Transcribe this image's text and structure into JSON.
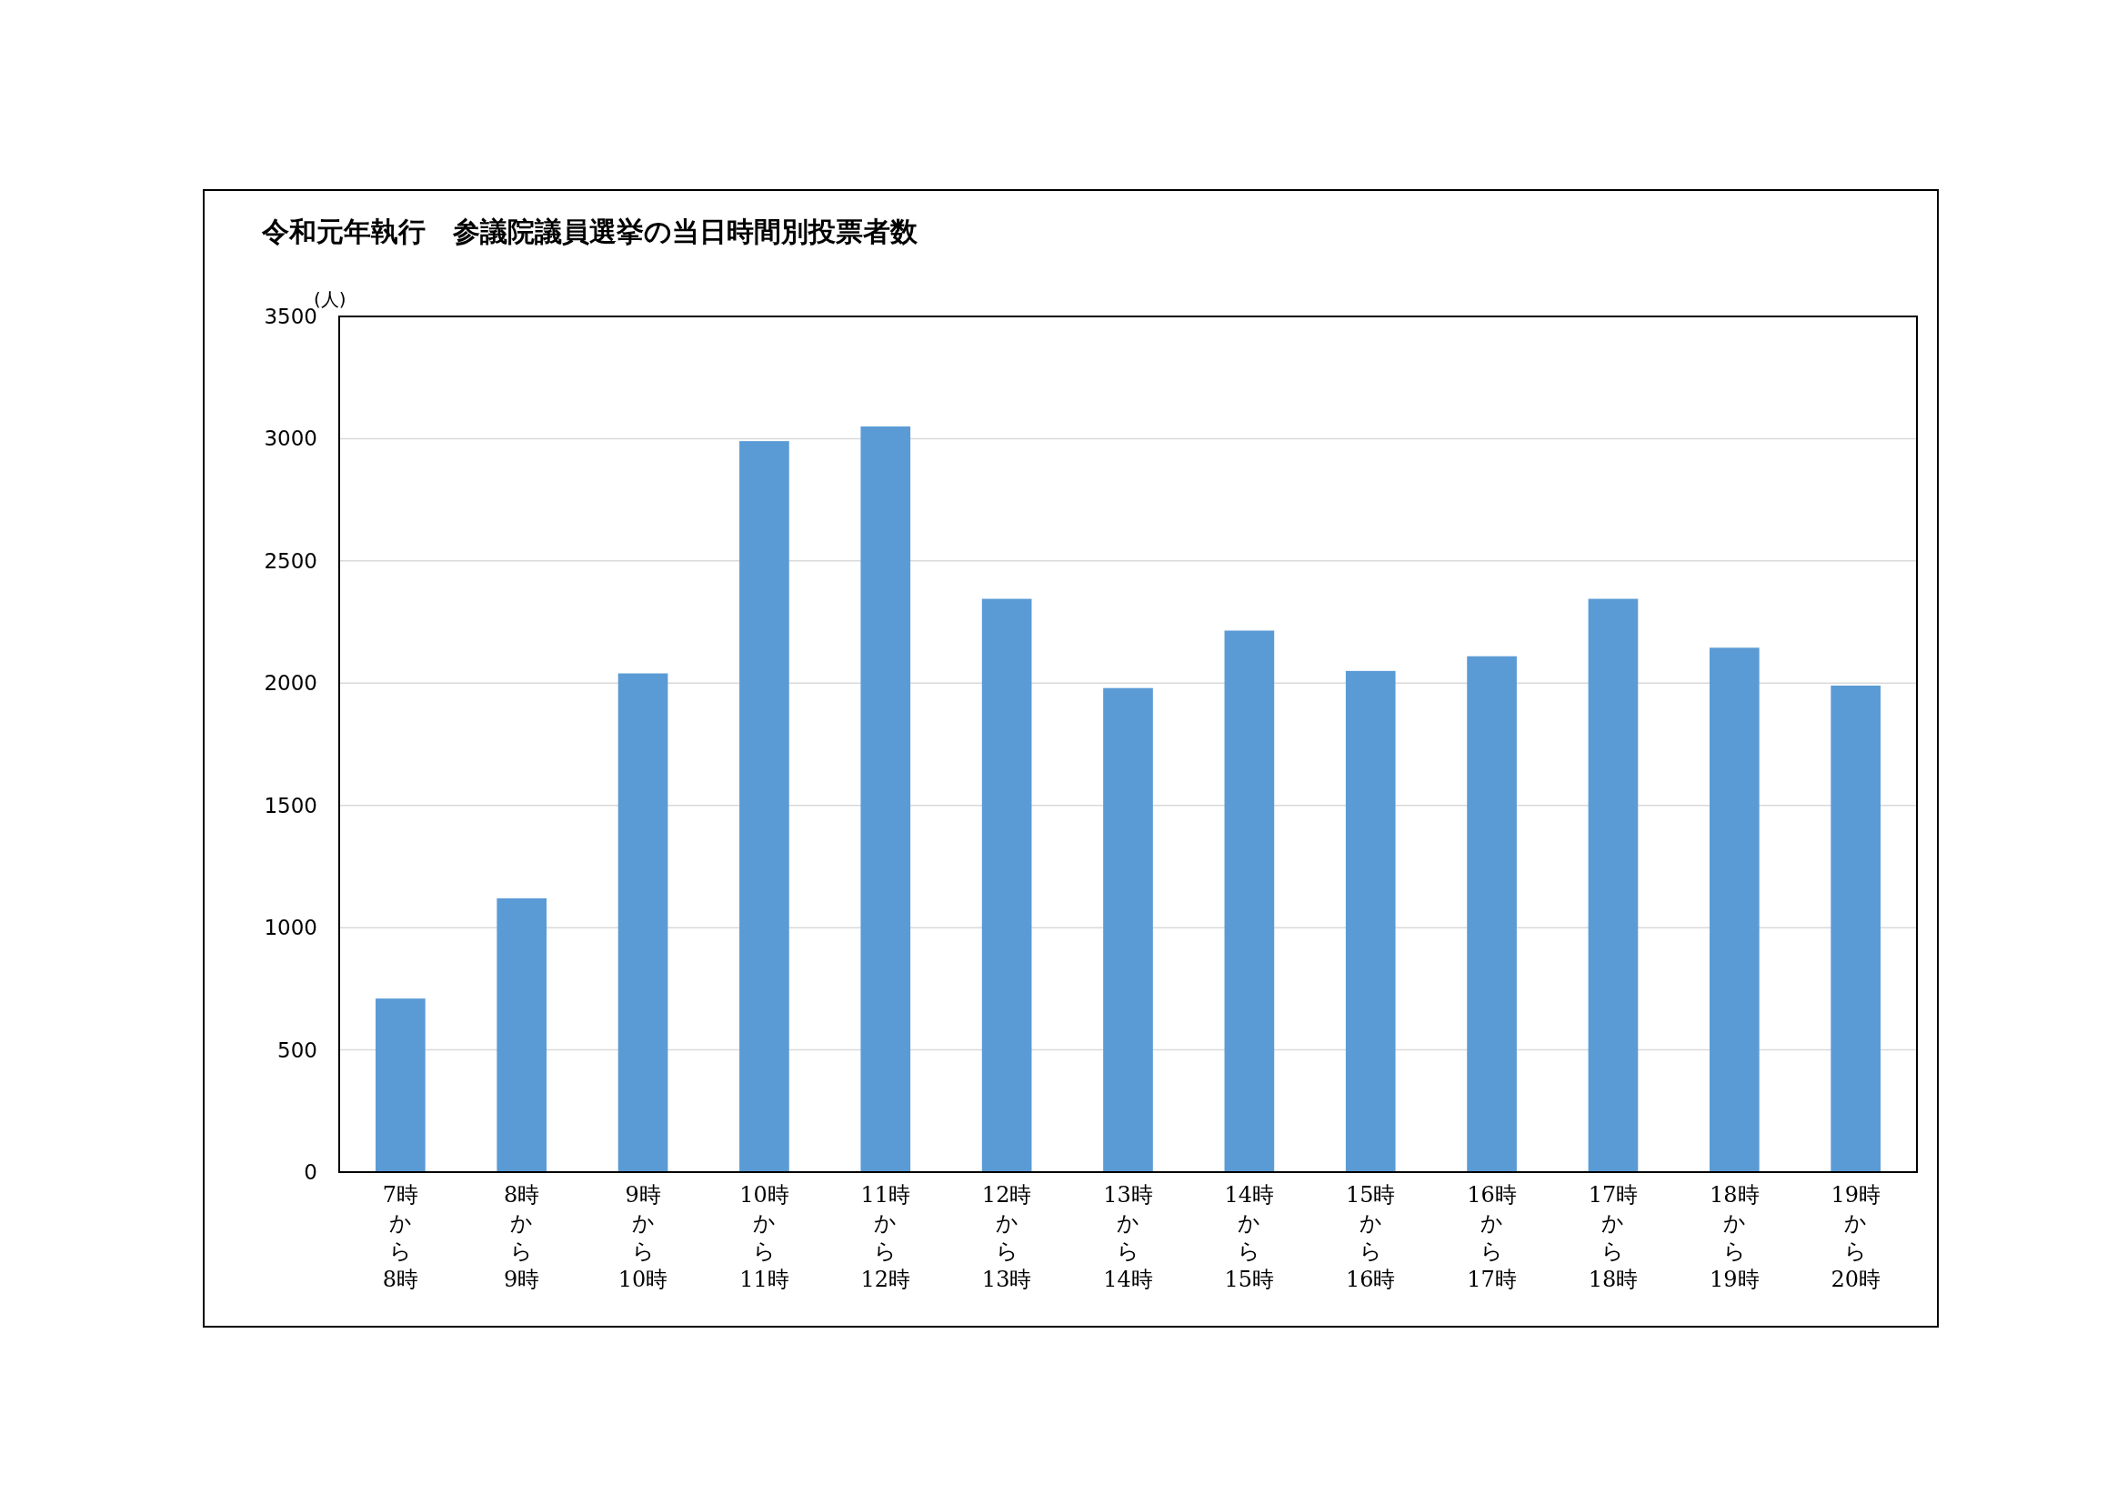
{
  "chart_data": {
    "type": "bar",
    "title": "令和元年執行　参議院議員選挙の当日時間別投票者数",
    "ylabel": "(人)",
    "categories": [
      "7時から8時",
      "8時から9時",
      "9時から10時",
      "10時から11時",
      "11時から12時",
      "12時から13時",
      "13時から14時",
      "14時から15時",
      "15時から16時",
      "16時から17時",
      "17時から18時",
      "18時から19時",
      "19時から20時"
    ],
    "values": [
      710,
      1120,
      2040,
      2990,
      3050,
      2345,
      1980,
      2215,
      2050,
      2110,
      2345,
      2145,
      1990
    ],
    "color": "#5b9bd5",
    "ylim": [
      0,
      3500
    ],
    "yticks": [
      0,
      500,
      1000,
      1500,
      2000,
      2500,
      3000,
      3500
    ],
    "grid": "y"
  }
}
